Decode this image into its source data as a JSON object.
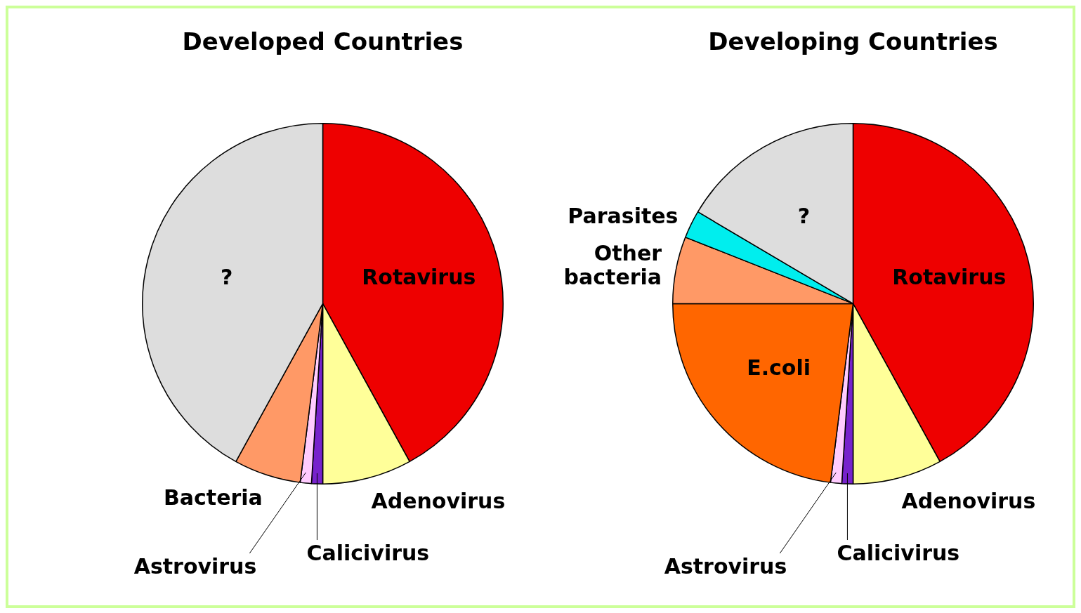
{
  "chart_data": [
    {
      "type": "pie",
      "title": "Developed Countries",
      "categories": [
        "Rotavirus",
        "Adenovirus",
        "Calicivirus",
        "Astrovirus",
        "Bacteria",
        "?"
      ],
      "values": [
        42,
        8,
        1,
        1,
        6,
        42
      ],
      "colors": [
        "#ee0000",
        "#ffff99",
        "#7722cc",
        "#ffccff",
        "#ff9966",
        "#dddddd"
      ],
      "legend": false
    },
    {
      "type": "pie",
      "title": "Developing Countries",
      "categories": [
        "Rotavirus",
        "Adenovirus",
        "Calicivirus",
        "Astrovirus",
        "E.coli",
        "Other bacteria",
        "Parasites",
        "?"
      ],
      "values": [
        42,
        8,
        1,
        1,
        23,
        6,
        2.5,
        16.5
      ],
      "colors": [
        "#ee0000",
        "#ffff99",
        "#7722cc",
        "#ffccff",
        "#ff6600",
        "#ff9966",
        "#00eeee",
        "#dddddd"
      ],
      "legend": false
    }
  ]
}
